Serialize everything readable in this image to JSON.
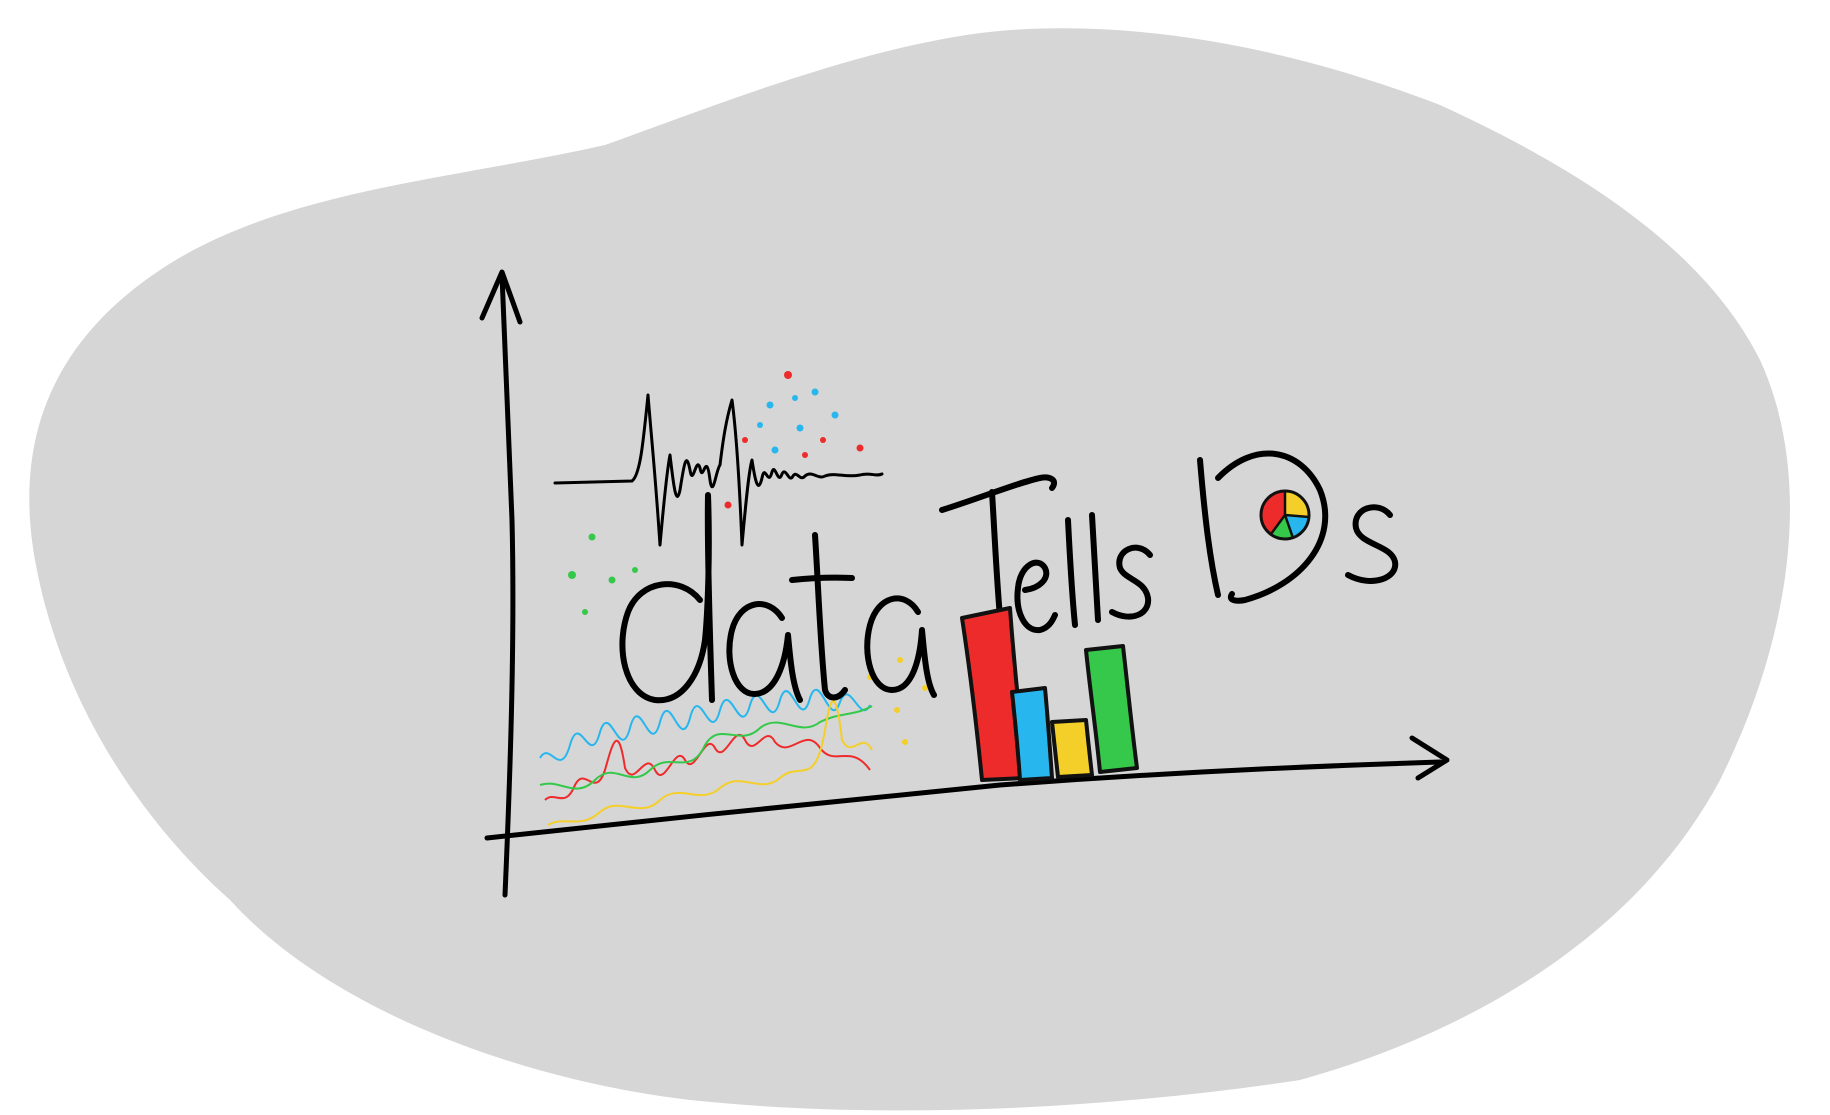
{
  "logo": {
    "text": "dataTellsDs",
    "colors": {
      "blob": "#d6d6d6",
      "ink": "#000000",
      "red": "#ee2b2b",
      "blue": "#27b7ee",
      "yellow": "#f4cf2a",
      "green": "#35c84a"
    },
    "icons": [
      "axis-arrow-icon",
      "waveform-icon",
      "scatter-dots-icon",
      "line-chart-icon",
      "bar-chart-icon",
      "pie-chart-icon"
    ]
  }
}
